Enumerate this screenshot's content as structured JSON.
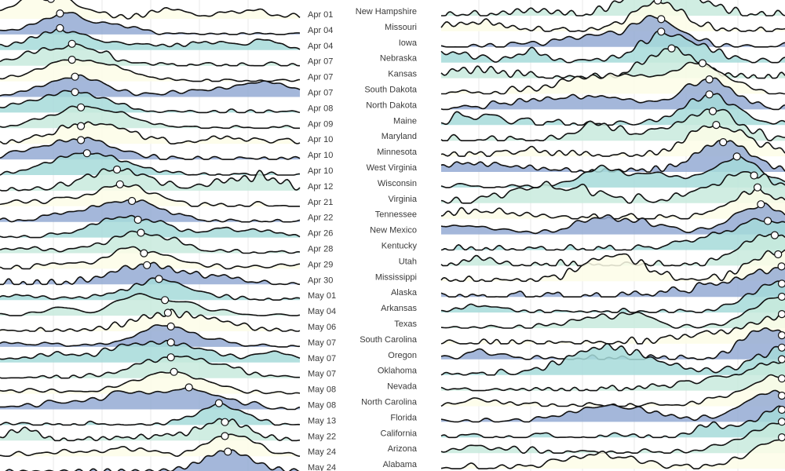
{
  "chart_data": [
    {
      "type": "area",
      "subtype": "ridgeline",
      "label_side": "right",
      "peak_markers": true,
      "grid": true,
      "palette": [
        "#fdfde8",
        "#c8eadd",
        "#a6dbd9",
        "#94aad3"
      ],
      "series": [
        {
          "name": "Apr 01",
          "peak": 0.17
        },
        {
          "name": "Apr 04",
          "peak": 0.2
        },
        {
          "name": "Apr 04",
          "peak": 0.2
        },
        {
          "name": "Apr 07",
          "peak": 0.24
        },
        {
          "name": "Apr 07",
          "peak": 0.24
        },
        {
          "name": "Apr 07",
          "peak": 0.25
        },
        {
          "name": "Apr 08",
          "peak": 0.25
        },
        {
          "name": "Apr 09",
          "peak": 0.27
        },
        {
          "name": "Apr 10",
          "peak": 0.27
        },
        {
          "name": "Apr 10",
          "peak": 0.27
        },
        {
          "name": "Apr 10",
          "peak": 0.29
        },
        {
          "name": "Apr 12",
          "peak": 0.39
        },
        {
          "name": "Apr 21",
          "peak": 0.4
        },
        {
          "name": "Apr 22",
          "peak": 0.44
        },
        {
          "name": "Apr 26",
          "peak": 0.46
        },
        {
          "name": "Apr 28",
          "peak": 0.47
        },
        {
          "name": "Apr 29",
          "peak": 0.48
        },
        {
          "name": "Apr 30",
          "peak": 0.49
        },
        {
          "name": "May 01",
          "peak": 0.53
        },
        {
          "name": "May 04",
          "peak": 0.55
        },
        {
          "name": "May 06",
          "peak": 0.56
        },
        {
          "name": "May 07",
          "peak": 0.57
        },
        {
          "name": "May 07",
          "peak": 0.57
        },
        {
          "name": "May 07",
          "peak": 0.57
        },
        {
          "name": "May 08",
          "peak": 0.58
        },
        {
          "name": "May 08",
          "peak": 0.63
        },
        {
          "name": "May 13",
          "peak": 0.73
        },
        {
          "name": "May 22",
          "peak": 0.75
        },
        {
          "name": "May 24",
          "peak": 0.75
        },
        {
          "name": "May 24",
          "peak": 0.76
        }
      ]
    },
    {
      "type": "area",
      "subtype": "ridgeline",
      "label_side": "left",
      "peak_markers": true,
      "grid": true,
      "palette": [
        "#fdfde8",
        "#c8eadd",
        "#a6dbd9",
        "#94aad3"
      ],
      "series": [
        {
          "name": "New Hampshire",
          "peak": 0.63
        },
        {
          "name": "Missouri",
          "peak": 0.63
        },
        {
          "name": "Iowa",
          "peak": 0.64
        },
        {
          "name": "Nebraska",
          "peak": 0.64
        },
        {
          "name": "Kansas",
          "peak": 0.67
        },
        {
          "name": "South Dakota",
          "peak": 0.76
        },
        {
          "name": "North Dakota",
          "peak": 0.78
        },
        {
          "name": "Maine",
          "peak": 0.78
        },
        {
          "name": "Maryland",
          "peak": 0.79
        },
        {
          "name": "Minnesota",
          "peak": 0.8
        },
        {
          "name": "West Virginia",
          "peak": 0.82
        },
        {
          "name": "Wisconsin",
          "peak": 0.86
        },
        {
          "name": "Virginia",
          "peak": 0.91
        },
        {
          "name": "Tennessee",
          "peak": 0.92
        },
        {
          "name": "New Mexico",
          "peak": 0.93
        },
        {
          "name": "Kentucky",
          "peak": 0.95
        },
        {
          "name": "Utah",
          "peak": 0.97
        },
        {
          "name": "Mississippi",
          "peak": 0.98
        },
        {
          "name": "Alaska",
          "peak": 0.99
        },
        {
          "name": "Arkansas",
          "peak": 1.0
        },
        {
          "name": "Texas",
          "peak": 1.0
        },
        {
          "name": "South Carolina",
          "peak": 1.0
        },
        {
          "name": "Oregon",
          "peak": 1.0
        },
        {
          "name": "Oklahoma",
          "peak": 1.0
        },
        {
          "name": "Nevada",
          "peak": 1.0
        },
        {
          "name": "North Carolina",
          "peak": 1.0
        },
        {
          "name": "Florida",
          "peak": 1.0
        },
        {
          "name": "California",
          "peak": 1.0
        },
        {
          "name": "Arizona",
          "peak": 1.0
        },
        {
          "name": "Alabama",
          "peak": 1.0
        }
      ]
    }
  ]
}
